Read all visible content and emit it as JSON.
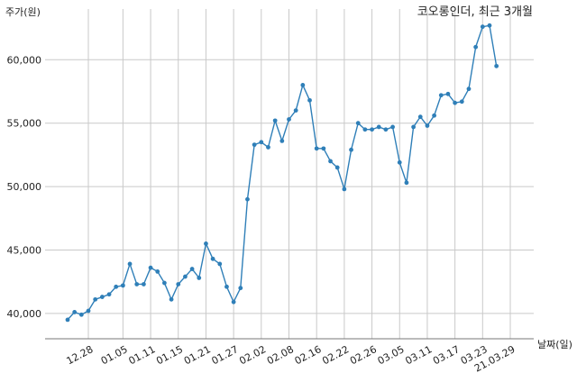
{
  "chart_data": {
    "type": "line",
    "title": "코오롱인더, 최근 3개월",
    "xlabel": "날짜(일)",
    "ylabel": "주가(원)",
    "ylim": [
      38000,
      64000
    ],
    "ytick_values": [
      40000,
      45000,
      50000,
      55000,
      60000
    ],
    "ytick_labels": [
      "40,000",
      "45,000",
      "50,000",
      "55,000",
      "60,000"
    ],
    "xtick_labels": [
      "12.28",
      "01.05",
      "01.11",
      "01.15",
      "01.21",
      "01.27",
      "02.02",
      "02.08",
      "02.16",
      "02.22",
      "02.26",
      "03.05",
      "03.11",
      "03.17",
      "03.23",
      "21.03.29"
    ],
    "xtick_index": [
      3,
      8,
      12,
      16,
      20,
      24,
      28,
      32,
      36,
      40,
      44,
      48,
      52,
      56,
      60,
      64
    ],
    "grid": true,
    "color": "#2f7fb8",
    "series": [
      {
        "values": [
          39500,
          40100,
          39900,
          40200,
          41100,
          41300,
          41500,
          42100,
          42200,
          43900,
          42300,
          42300,
          43600,
          43300,
          42400,
          41100,
          42300,
          42900,
          43500,
          42800,
          45500,
          44300,
          43900,
          42100,
          40900,
          42000,
          49000,
          53300,
          53500,
          53100,
          55200,
          53600,
          55300,
          56000,
          58000,
          56800,
          53000,
          53000,
          52000,
          51500,
          49800,
          52900,
          55000,
          54500,
          54500,
          54700,
          54500,
          54700,
          51900,
          50300,
          54700,
          55500,
          54800,
          55600,
          57200,
          57300,
          56600,
          56700,
          57700,
          61000,
          62600,
          62700,
          59500
        ]
      }
    ]
  }
}
